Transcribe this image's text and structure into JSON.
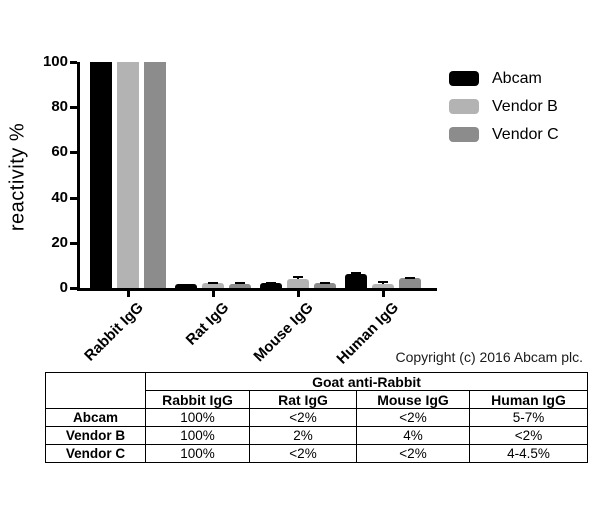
{
  "chart_data": {
    "type": "bar",
    "title": "",
    "xlabel": "",
    "ylabel": "reactivity %",
    "ylim": [
      0,
      100
    ],
    "yticks": [
      0,
      20,
      40,
      60,
      80,
      100
    ],
    "grid": false,
    "legend_position": "top-right",
    "categories": [
      "Rabbit IgG",
      "Rat IgG",
      "Mouse IgG",
      "Human IgG"
    ],
    "series": [
      {
        "name": "Abcam",
        "color": "#000000",
        "values": [
          100,
          1.8,
          2.0,
          6.0
        ],
        "errors": [
          0,
          0,
          0.3,
          0.7
        ]
      },
      {
        "name": "Vendor B",
        "color": "#b3b3b3",
        "values": [
          100,
          2.0,
          3.8,
          1.8
        ],
        "errors": [
          0,
          0.4,
          0.9,
          0.7
        ]
      },
      {
        "name": "Vendor C",
        "color": "#8c8c8c",
        "values": [
          100,
          1.9,
          2.0,
          4.3
        ],
        "errors": [
          0,
          0.5,
          0.4,
          0.3
        ]
      }
    ]
  },
  "copyright": "Copyright (c) 2016 Abcam plc.",
  "table": {
    "group_header": "Goat anti-Rabbit",
    "corner_label": "",
    "columns": [
      "Rabbit IgG",
      "Rat IgG",
      "Mouse IgG",
      "Human IgG"
    ],
    "rows": [
      {
        "label": "Abcam",
        "values": [
          "100%",
          "<2%",
          "<2%",
          "5-7%"
        ]
      },
      {
        "label": "Vendor B",
        "values": [
          "100%",
          "2%",
          "4%",
          "<2%"
        ]
      },
      {
        "label": "Vendor C",
        "values": [
          "100%",
          "<2%",
          "<2%",
          "4-4.5%"
        ]
      }
    ]
  }
}
